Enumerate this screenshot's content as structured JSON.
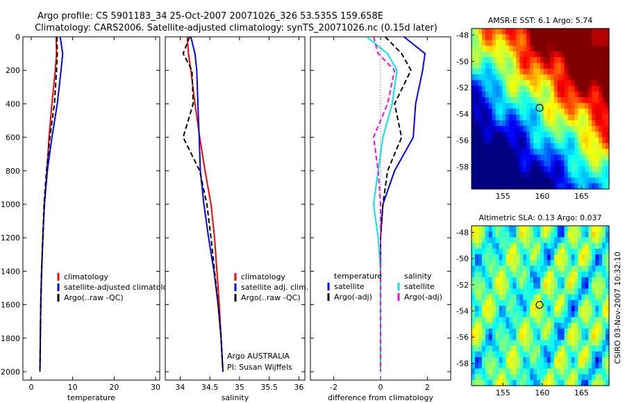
{
  "header": {
    "title_line1": "Argo profile: CS 5901183_34 25-Oct-2007 20071026_326 53.535S 159.658E",
    "title_line2": "Climatology: CARS2006. Satellite-adjusted climatology: synTS_20071026.nc (0.15d later)"
  },
  "side_stamp": "CSIRO 03-Nov-2007 10:32:10",
  "colors": {
    "climatology": "#ff0000",
    "satellite": "#0000ff",
    "argo": "#000000",
    "sat_diff": "#00e5e5",
    "argo_adj": "#ff00ff",
    "ocean_cold": "#00008b",
    "ocean_warm": "#ff8c00"
  },
  "chart_data": [
    {
      "id": "temperature",
      "type": "line",
      "xlabel": "temperature",
      "xlim": [
        -2,
        31
      ],
      "ylim": [
        2050,
        0
      ],
      "xticks": [
        0,
        10,
        20,
        30
      ],
      "yticks": [
        0,
        200,
        400,
        600,
        800,
        1000,
        1200,
        1400,
        1600,
        1800,
        2000
      ],
      "series": [
        {
          "name": "climatology",
          "color": "#ff0000",
          "x": [
            6.0,
            6.1,
            5.8,
            5.0,
            4.3,
            3.8,
            3.2,
            2.8,
            2.5,
            2.3,
            2.2,
            2.1
          ],
          "y": [
            0,
            100,
            200,
            400,
            600,
            800,
            1000,
            1200,
            1400,
            1600,
            1800,
            2000
          ]
        },
        {
          "name": "satellite-adjusted climatology",
          "color": "#0000ff",
          "x": [
            7.0,
            7.6,
            7.2,
            6.3,
            5.0,
            3.9,
            3.2,
            2.8,
            2.5,
            2.3,
            2.2,
            2.1
          ],
          "y": [
            0,
            100,
            200,
            400,
            600,
            800,
            1000,
            1200,
            1400,
            1600,
            1800,
            2000
          ]
        },
        {
          "name": "Argo(..raw -QC)",
          "color": "#000000",
          "dashed": true,
          "x": [
            6.2,
            6.3,
            6.1,
            5.6,
            4.5,
            3.7,
            3.1,
            2.8,
            2.5,
            2.3,
            2.2,
            2.1
          ],
          "y": [
            0,
            100,
            200,
            400,
            600,
            800,
            1000,
            1200,
            1400,
            1600,
            1800,
            2000
          ]
        }
      ]
    },
    {
      "id": "salinity",
      "type": "line",
      "xlabel": "salinity",
      "xlim": [
        33.75,
        36.1
      ],
      "ylim": [
        2050,
        0
      ],
      "xticks": [
        34,
        34.5,
        35,
        35.5,
        36
      ],
      "xticklabels": [
        "34",
        "34.5",
        "35",
        "35.5",
        "36"
      ],
      "series": [
        {
          "name": "climatology",
          "color": "#ff0000",
          "x": [
            34.12,
            34.14,
            34.18,
            34.25,
            34.33,
            34.42,
            34.52,
            34.58,
            34.62,
            34.66,
            34.69,
            34.72
          ],
          "y": [
            0,
            100,
            200,
            400,
            600,
            800,
            1000,
            1200,
            1400,
            1600,
            1800,
            2000
          ]
        },
        {
          "name": "satellite adj. clim.",
          "color": "#0000ff",
          "x": [
            34.18,
            34.25,
            34.28,
            34.3,
            34.32,
            34.34,
            34.4,
            34.48,
            34.57,
            34.64,
            34.69,
            34.72
          ],
          "y": [
            0,
            100,
            200,
            400,
            600,
            800,
            1000,
            1200,
            1400,
            1600,
            1800,
            2000
          ]
        },
        {
          "name": "Argo(..raw -QC)",
          "color": "#000000",
          "dashed": true,
          "x": [
            34.16,
            34.05,
            34.2,
            34.22,
            34.05,
            34.33,
            34.45,
            34.52,
            34.58,
            34.64,
            34.69,
            34.72
          ],
          "y": [
            0,
            100,
            200,
            400,
            600,
            800,
            1000,
            1200,
            1400,
            1600,
            1800,
            2000
          ]
        }
      ],
      "annotation_line1": "Argo AUSTRALIA",
      "annotation_line2": "PI: Susan Wijffels"
    },
    {
      "id": "difference",
      "type": "line",
      "xlabel": "difference from climatology",
      "xlim": [
        -3,
        3
      ],
      "ylim": [
        2050,
        0
      ],
      "xticks": [
        -2,
        0,
        2
      ],
      "series": [
        {
          "name": "temperature satellite",
          "color": "#0000ff",
          "x": [
            1.0,
            1.9,
            1.8,
            1.5,
            1.4,
            0.6,
            0.1,
            0.0,
            0.0,
            0.0,
            0.0,
            0.0
          ],
          "y": [
            0,
            100,
            200,
            400,
            600,
            800,
            1000,
            1200,
            1400,
            1600,
            1800,
            2000
          ]
        },
        {
          "name": "temperature Argo(-adj)",
          "color": "#000000",
          "dashed": true,
          "x": [
            0.2,
            0.9,
            1.3,
            0.6,
            0.9,
            0.3,
            0.1,
            0.0,
            0.0,
            0.0,
            0.0,
            0.0
          ],
          "y": [
            0,
            100,
            200,
            400,
            600,
            800,
            1000,
            1200,
            1400,
            1600,
            1800,
            2000
          ]
        },
        {
          "name": "salinity satellite",
          "color": "#00e5e5",
          "x": [
            -0.6,
            0.3,
            0.7,
            0.5,
            0.1,
            -0.1,
            -0.3,
            -0.1,
            0.0,
            0.0,
            0.0,
            0.0
          ],
          "y": [
            0,
            100,
            200,
            400,
            600,
            800,
            1000,
            1200,
            1400,
            1600,
            1800,
            2000
          ]
        },
        {
          "name": "salinity Argo(-adj)",
          "color": "#ff00ff",
          "dashed": true,
          "x": [
            -0.3,
            -0.1,
            0.6,
            0.3,
            -0.3,
            -0.1,
            0.0,
            0.0,
            0.0,
            0.0,
            0.0,
            0.0
          ],
          "y": [
            0,
            100,
            200,
            400,
            600,
            800,
            1000,
            1200,
            1400,
            1600,
            1800,
            2000
          ]
        }
      ],
      "legend": {
        "temperature_heading": "temperature",
        "salinity_heading": "salinity",
        "satellite_label": "satellite",
        "argo_label": "Argo(-adj)"
      }
    },
    {
      "id": "sst_map",
      "type": "heatmap",
      "title": "AMSR-E SST: 6.1 Argo: 5.74",
      "xlim": [
        151,
        168.5
      ],
      "ylim": [
        -59.7,
        -47.5
      ],
      "xticks": [
        155,
        160,
        165
      ],
      "yticks": [
        -48,
        -50,
        -52,
        -54,
        -56,
        -58
      ],
      "argo_position": {
        "lon": 159.658,
        "lat": -53.535
      }
    },
    {
      "id": "sla_map",
      "type": "heatmap",
      "title": "Altimetric SLA: 0.13 Argo: 0.037",
      "xlim": [
        151,
        168.5
      ],
      "ylim": [
        -59.7,
        -47.5
      ],
      "xticks": [
        155,
        160,
        165
      ],
      "yticks": [
        -48,
        -50,
        -52,
        -54,
        -56,
        -58
      ],
      "argo_position": {
        "lon": 159.658,
        "lat": -53.535
      }
    }
  ]
}
